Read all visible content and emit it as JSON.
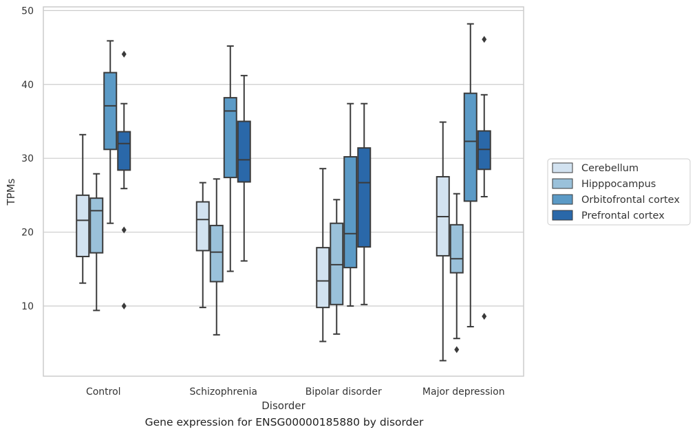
{
  "caption": "Gene expression for ENSG00000185880 by disorder",
  "chart_data": {
    "type": "box",
    "xlabel": "Disorder",
    "ylabel": "TPMs",
    "ylim": [
      0.5,
      50.5
    ],
    "yticks": [
      10,
      20,
      30,
      40,
      50
    ],
    "grid": "horizontal",
    "legend_position": "right",
    "categories": [
      "Control",
      "Schizophrenia",
      "Bipolar disorder",
      "Major depression"
    ],
    "colors": {
      "Cerebellum": "#d2e2f0",
      "Hipppocampus": "#9ac1da",
      "Orbitofrontal cortex": "#5b9ac6",
      "Prefrontal cortex": "#2a68a9"
    },
    "series": [
      {
        "name": "Cerebellum",
        "boxes": [
          {
            "whislo": 13.1,
            "q1": 16.7,
            "med": 21.6,
            "q3": 25.0,
            "whishi": 33.2,
            "fliers": []
          },
          {
            "whislo": 9.8,
            "q1": 17.5,
            "med": 21.7,
            "q3": 24.1,
            "whishi": 26.7,
            "fliers": []
          },
          {
            "whislo": 5.2,
            "q1": 9.8,
            "med": 13.4,
            "q3": 17.9,
            "whishi": 28.6,
            "fliers": []
          },
          {
            "whislo": 2.6,
            "q1": 16.8,
            "med": 22.1,
            "q3": 27.5,
            "whishi": 34.9,
            "fliers": []
          }
        ]
      },
      {
        "name": "Hipppocampus",
        "boxes": [
          {
            "whislo": 9.4,
            "q1": 17.2,
            "med": 22.9,
            "q3": 24.6,
            "whishi": 27.9,
            "fliers": []
          },
          {
            "whislo": 6.1,
            "q1": 13.3,
            "med": 17.3,
            "q3": 20.9,
            "whishi": 27.2,
            "fliers": []
          },
          {
            "whislo": 6.2,
            "q1": 10.2,
            "med": 15.6,
            "q3": 21.2,
            "whishi": 24.4,
            "fliers": []
          },
          {
            "whislo": 5.6,
            "q1": 14.5,
            "med": 16.4,
            "q3": 21.0,
            "whishi": 25.2,
            "fliers": [
              4.1
            ]
          }
        ]
      },
      {
        "name": "Orbitofrontal cortex",
        "boxes": [
          {
            "whislo": 21.2,
            "q1": 31.2,
            "med": 37.1,
            "q3": 41.6,
            "whishi": 45.9,
            "fliers": []
          },
          {
            "whislo": 14.7,
            "q1": 27.4,
            "med": 36.4,
            "q3": 38.2,
            "whishi": 45.2,
            "fliers": []
          },
          {
            "whislo": 10.0,
            "q1": 15.2,
            "med": 19.8,
            "q3": 30.2,
            "whishi": 37.4,
            "fliers": []
          },
          {
            "whislo": 7.2,
            "q1": 24.2,
            "med": 32.3,
            "q3": 38.8,
            "whishi": 48.2,
            "fliers": []
          }
        ]
      },
      {
        "name": "Prefrontal cortex",
        "boxes": [
          {
            "whislo": 25.9,
            "q1": 28.4,
            "med": 32.0,
            "q3": 33.6,
            "whishi": 37.4,
            "fliers": [
              44.1,
              20.3,
              10.0
            ]
          },
          {
            "whislo": 16.1,
            "q1": 26.8,
            "med": 29.8,
            "q3": 35.0,
            "whishi": 41.2,
            "fliers": []
          },
          {
            "whislo": 10.2,
            "q1": 18.0,
            "med": 26.7,
            "q3": 31.4,
            "whishi": 37.4,
            "fliers": []
          },
          {
            "whislo": 24.8,
            "q1": 28.5,
            "med": 31.2,
            "q3": 33.7,
            "whishi": 38.6,
            "fliers": [
              46.1,
              8.6
            ]
          }
        ]
      }
    ]
  }
}
